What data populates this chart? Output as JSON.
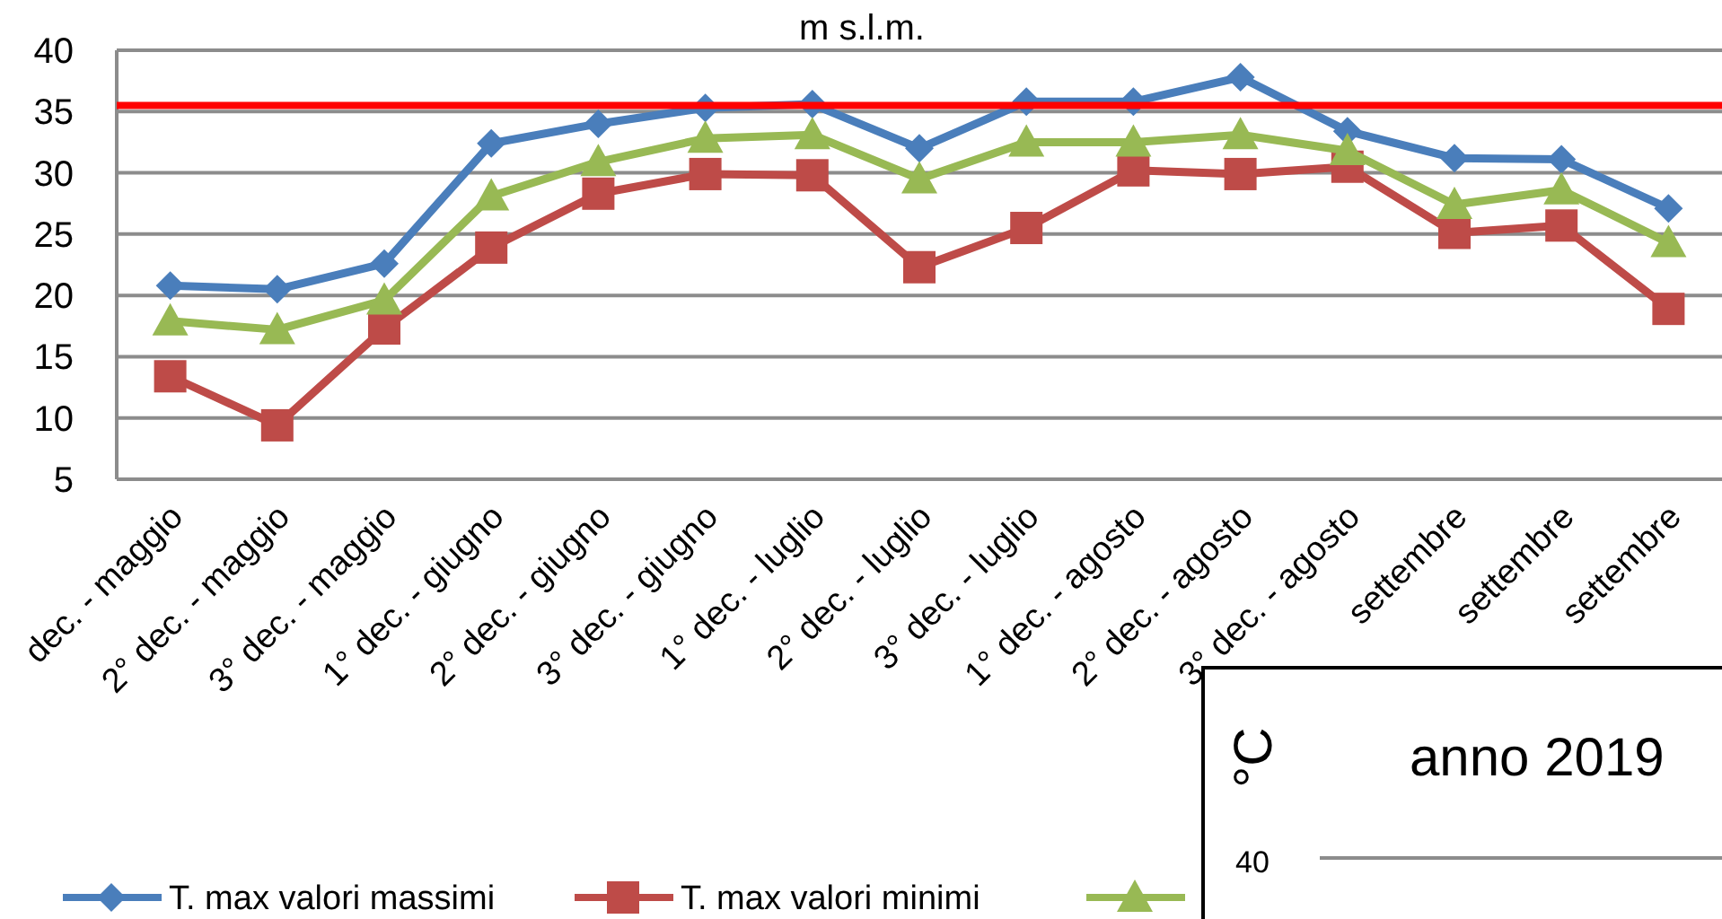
{
  "chart_data": [
    {
      "type": "line",
      "title": "m s.l.m.",
      "categories": [
        "dec. - maggio",
        "2° dec. - maggio",
        "3° dec. - maggio",
        "1° dec. - giugno",
        "2° dec. - giugno",
        "3° dec. - giugno",
        "1° dec. - luglio",
        "2° dec. - luglio",
        "3° dec. - luglio",
        "1° dec. - agosto",
        "2° dec. - agosto",
        "3° dec. - agosto",
        "settembre",
        "settembre",
        "settembre"
      ],
      "series": [
        {
          "name": "T. max valori massimi",
          "color": "#4a7ebb",
          "marker": "diamond",
          "values": [
            20.8,
            20.5,
            22.6,
            32.4,
            34.0,
            35.3,
            35.6,
            32.0,
            35.8,
            35.8,
            37.8,
            33.4,
            31.2,
            31.1,
            27.1
          ]
        },
        {
          "name": "T. max valori minimi",
          "color": "#be4b48",
          "marker": "square",
          "values": [
            13.4,
            9.4,
            17.3,
            23.9,
            28.3,
            29.9,
            29.8,
            22.3,
            25.5,
            30.2,
            29.9,
            30.5,
            25.1,
            25.7,
            18.9
          ]
        },
        {
          "color": "#98b954",
          "marker": "triangle",
          "values": [
            17.9,
            17.2,
            19.6,
            28.1,
            30.9,
            32.8,
            33.1,
            29.5,
            32.5,
            32.5,
            33.1,
            31.8,
            27.4,
            28.6,
            24.3
          ]
        }
      ],
      "ylim": [
        5,
        40
      ],
      "yticks": [
        5,
        10,
        15,
        20,
        25,
        30,
        35,
        40
      ],
      "grid": "y",
      "legend": "bottom",
      "ref_lines": [
        {
          "axis": "y",
          "value": 35.5,
          "color": "#ff0000"
        }
      ]
    },
    {
      "type": "other",
      "title": "anno 2019",
      "ylabel": "°C",
      "annotations": [
        "40"
      ]
    }
  ]
}
